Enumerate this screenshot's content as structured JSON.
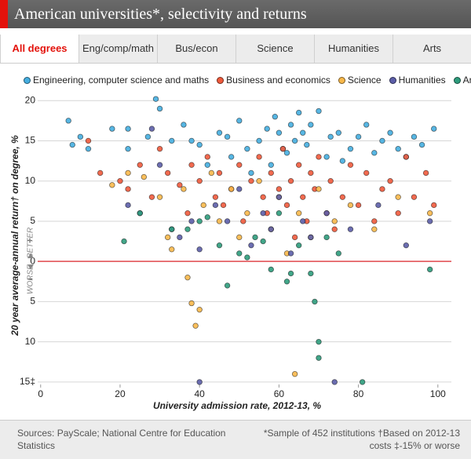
{
  "header": {
    "title": "American universities*, selectivity and returns"
  },
  "tabs": {
    "items": [
      "All degrees",
      "Eng/comp/math",
      "Bus/econ",
      "Science",
      "Humanities",
      "Arts"
    ],
    "active": 0
  },
  "chart_data": {
    "type": "scatter",
    "x_label": "University admission rate, 2012-13, %",
    "y_label": "20 year average-annual return† on degree, %",
    "better_label": "BETTER",
    "worse_label": "WORSE",
    "better_sign": "+",
    "worse_sign": "–",
    "xlim": [
      -4.3,
      103.4
    ],
    "xticks": [
      0,
      20,
      40,
      60,
      80,
      100
    ],
    "ylim": [
      -15.3,
      20.8
    ],
    "yticks": [
      20,
      15,
      10,
      5,
      0,
      {
        "value": -5,
        "label": "5"
      },
      {
        "value": -10,
        "label": "10"
      },
      {
        "value": -15,
        "label": "15‡"
      }
    ],
    "grid": true,
    "zero_line_color": "#e0474c",
    "series": [
      {
        "name": "Engineering, computer science and maths",
        "color": "#45aee0",
        "x": [
          7,
          8,
          10,
          12,
          18,
          22,
          22,
          27,
          29,
          30,
          33,
          36,
          38,
          40,
          42,
          45,
          47,
          48,
          50,
          52,
          53,
          55,
          57,
          58,
          59,
          60,
          61,
          62,
          63,
          64,
          65,
          66,
          67,
          68,
          70,
          72,
          73,
          75,
          76,
          78,
          80,
          82,
          84,
          86,
          88,
          90,
          92,
          94,
          96,
          99
        ],
        "values": [
          17.5,
          14.5,
          15.5,
          14,
          16.5,
          16.5,
          14,
          15.5,
          20.2,
          19,
          15,
          17,
          15,
          14.5,
          12,
          16,
          15.5,
          13,
          17.5,
          14,
          11,
          15,
          16.5,
          12,
          18,
          16,
          14,
          13.5,
          17,
          15,
          18.5,
          16,
          14.5,
          17,
          18.7,
          13,
          15.5,
          16,
          12.5,
          14,
          15.5,
          17,
          13.5,
          15,
          16,
          14,
          13,
          15.5,
          14.5,
          16.5
        ]
      },
      {
        "name": "Business and economics",
        "color": "#ef5a3c",
        "x": [
          12,
          15,
          20,
          22,
          25,
          28,
          30,
          32,
          35,
          37,
          38,
          40,
          42,
          44,
          45,
          46,
          48,
          50,
          51,
          53,
          55,
          56,
          57,
          58,
          60,
          61,
          62,
          63,
          64,
          65,
          66,
          67,
          68,
          69,
          70,
          72,
          73,
          74,
          76,
          78,
          80,
          82,
          84,
          86,
          88,
          90,
          92,
          94,
          97,
          99
        ],
        "values": [
          15,
          11,
          10,
          9,
          12,
          8,
          14,
          11,
          9.5,
          6,
          12,
          10,
          13,
          8,
          11,
          7,
          9,
          12,
          5,
          10,
          13,
          8,
          6,
          11,
          9,
          14,
          7,
          10,
          3,
          12,
          8,
          5,
          11,
          9,
          13,
          6,
          10,
          4,
          8,
          12,
          7,
          11,
          5,
          9,
          10,
          6,
          13,
          8,
          11,
          7
        ]
      },
      {
        "name": "Science",
        "color": "#f8b84a",
        "x": [
          18,
          22,
          26,
          30,
          32,
          33,
          36,
          37,
          38,
          39,
          40,
          41,
          43,
          45,
          48,
          50,
          52,
          55,
          58,
          60,
          62,
          64,
          65,
          68,
          70,
          74,
          78,
          84,
          90,
          98
        ],
        "values": [
          9.5,
          11,
          10.5,
          8,
          3,
          1.5,
          9,
          -2,
          -5.2,
          -8,
          -6,
          7,
          11,
          5,
          9,
          3,
          6,
          10,
          4,
          8,
          1,
          -14,
          6,
          3,
          9,
          5,
          7,
          4,
          8,
          6
        ]
      },
      {
        "name": "Humanities",
        "color": "#5c5ea8",
        "x": [
          22,
          25,
          28,
          30,
          33,
          35,
          38,
          40,
          40,
          44,
          47,
          50,
          53,
          56,
          58,
          60,
          63,
          66,
          68,
          72,
          74,
          78,
          85,
          92,
          98
        ],
        "values": [
          7,
          6,
          16.5,
          12,
          4,
          3,
          5,
          1.5,
          -15,
          7,
          5,
          9,
          2,
          6,
          4,
          8,
          1,
          5,
          3,
          6,
          -15,
          4,
          7,
          2,
          5
        ]
      },
      {
        "name": "Arts",
        "color": "#2e9c7c",
        "x": [
          21,
          25,
          33,
          37,
          40,
          42,
          45,
          47,
          50,
          52,
          54,
          56,
          58,
          60,
          62,
          63,
          65,
          68,
          69,
          70,
          70,
          72,
          75,
          81,
          98
        ],
        "values": [
          2.5,
          6,
          4,
          4,
          5,
          5.5,
          2,
          -3,
          1,
          0.5,
          3,
          2.5,
          -1,
          6,
          -2.5,
          -1.5,
          2,
          -1.5,
          -5,
          -10,
          -12,
          3,
          1,
          -15,
          -1
        ]
      }
    ]
  },
  "footer": {
    "sources": "Sources: PayScale; National Centre for Education Statistics",
    "notes": "*Sample of 452 institutions †Based on 2012-13 costs ‡-15% or worse"
  }
}
